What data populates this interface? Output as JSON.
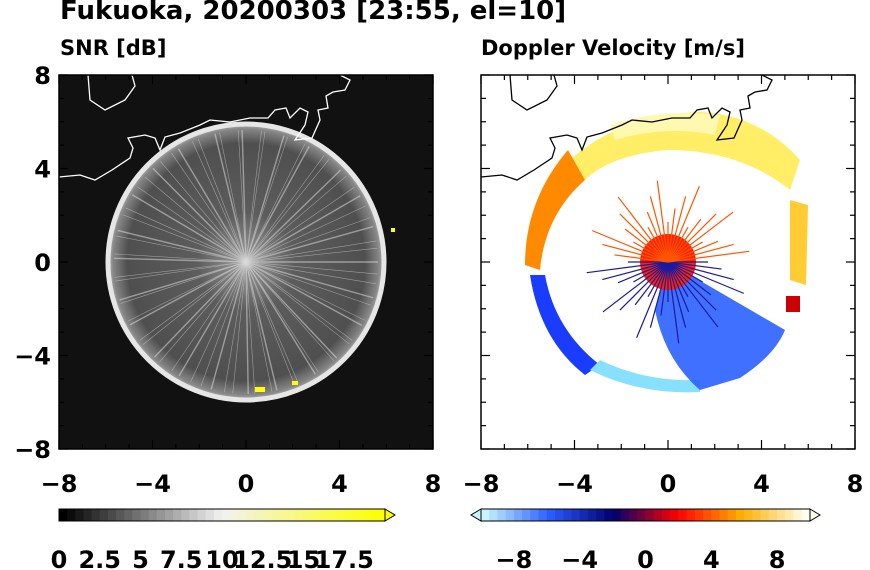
{
  "figure": {
    "title": "Fukuoka, 20200303 [23:55, el=10]"
  },
  "panels": [
    {
      "title": "SNR [dB]",
      "type": "heatmap",
      "colormap": "grayscale",
      "background": "#101010"
    },
    {
      "title": "Doppler Velocity [m/s]",
      "type": "heatmap",
      "colormap": "blue-white-red diverging",
      "background": "#ffffff"
    }
  ],
  "chart_data": [
    {
      "type": "heatmap",
      "title": "SNR [dB]",
      "xlim": [
        -8,
        8
      ],
      "ylim": [
        -8,
        8
      ],
      "xticks": [
        "−8",
        "−4",
        "0",
        "4",
        "8"
      ],
      "yticks": [
        "8",
        "4",
        "0",
        "−4",
        "−8"
      ],
      "colorbar": {
        "range": [
          0,
          20
        ],
        "ticks": [
          "0",
          "2.5",
          "5",
          "7.5",
          "10",
          "12.5",
          "15",
          "17.5"
        ],
        "extend": "max",
        "colors": [
          "#000000",
          "#f2f2f2",
          "#ffff00"
        ]
      },
      "echo_radius_km": 5.6
    },
    {
      "type": "heatmap",
      "title": "Doppler Velocity [m/s]",
      "xlim": [
        -8,
        8
      ],
      "ylim": [
        -8,
        8
      ],
      "xticks": [
        "−8",
        "−4",
        "0",
        "4",
        "8"
      ],
      "colorbar": {
        "range": [
          -10,
          10
        ],
        "ticks": [
          "−8",
          "−4",
          "0",
          "4",
          "8"
        ],
        "extend": "both",
        "colors": [
          "#c8f4ff",
          "#2a5cff",
          "#00006e",
          "#ff0000",
          "#ffb000",
          "#fffff0"
        ]
      },
      "echo_radius_km": 5.6
    }
  ]
}
